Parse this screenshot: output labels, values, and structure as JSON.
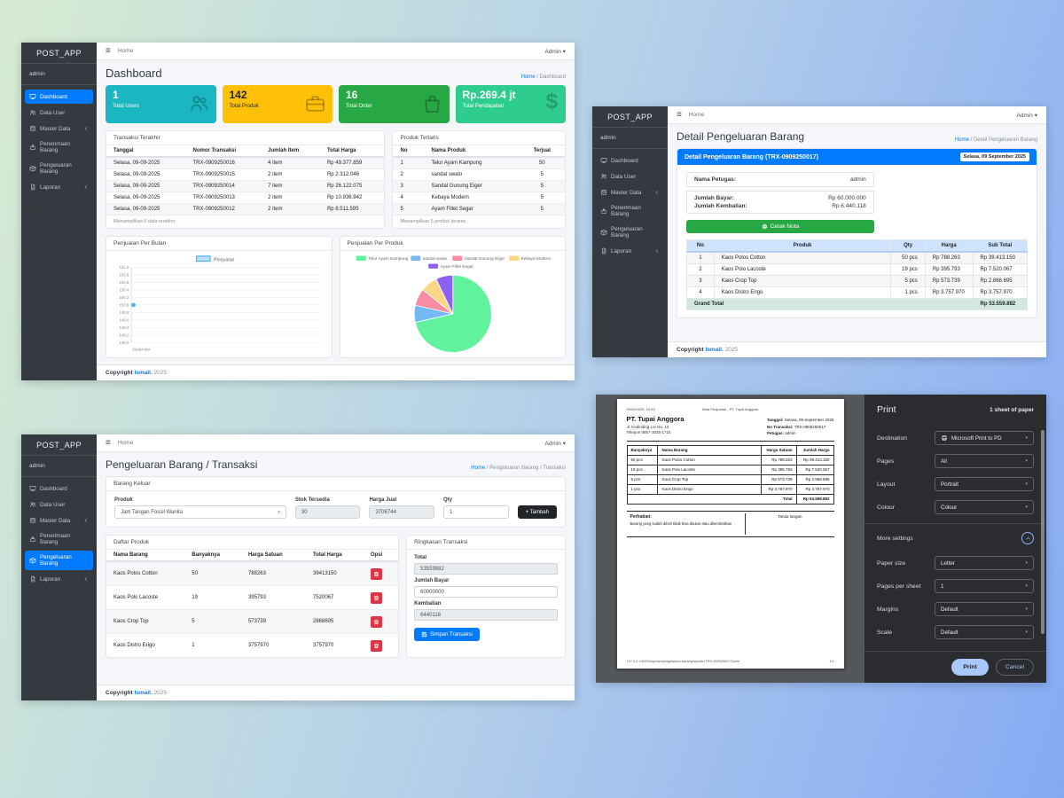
{
  "sidebar": {
    "brand": "POST_APP",
    "user": "admin",
    "items": [
      {
        "label": "Dashboard",
        "icon": "desktop-icon"
      },
      {
        "label": "Data User",
        "icon": "users-icon"
      },
      {
        "label": "Master Data",
        "icon": "database-icon",
        "chevron": true
      },
      {
        "label": "Penerimaan Barang",
        "icon": "receive-icon"
      },
      {
        "label": "Pengeluaran Barang",
        "icon": "box-icon"
      },
      {
        "label": "Laporan",
        "icon": "report-icon",
        "chevron": true
      }
    ]
  },
  "topbar": {
    "menu_icon": "≡",
    "home": "Home",
    "user_menu": "Admin",
    "caret": "▾"
  },
  "copyright": {
    "label": "Copyright",
    "brand": "Ismail.",
    "year": "2025"
  },
  "win_dashboard": {
    "title": "Dashboard",
    "breadcrumb_home": "Home",
    "breadcrumb_current": "Dashboard",
    "cards": [
      {
        "value": "1",
        "label": "Total Users",
        "color": "#1ab6c2",
        "icon": "users-group-icon"
      },
      {
        "value": "142",
        "label": "Total Produk",
        "color": "#ffc107",
        "icon": "briefcase-icon"
      },
      {
        "value": "16",
        "label": "Total Order",
        "color": "#28a745",
        "icon": "shopping-bag-icon"
      },
      {
        "value": "Rp.269.4 jt",
        "label": "Total Pendapatan",
        "color": "#2ecc8e",
        "icon": "dollar-icon"
      }
    ],
    "transaksi": {
      "title": "Transaksi Terakhir",
      "headers": [
        "Tanggal",
        "Nomor Transaksi",
        "Jumlah Item",
        "Total Harga"
      ],
      "rows": [
        [
          "Selasa, 09-09-2025",
          "TRX-0909250016",
          "4 item",
          "Rp 49.377.859"
        ],
        [
          "Selasa, 09-09-2025",
          "TRX-0909250015",
          "2 item",
          "Rp 2.312.046"
        ],
        [
          "Selasa, 09-09-2025",
          "TRX-0909250014",
          "7 item",
          "Rp 26.122.075"
        ],
        [
          "Selasa, 09-09-2025",
          "TRX-0909250013",
          "2 item",
          "Rp 10.936.942"
        ],
        [
          "Selasa, 09-09-2025",
          "TRX-0909250012",
          "2 item",
          "Rp 8.511.595"
        ]
      ],
      "footer": "Menampilkan 5 data terakhir"
    },
    "produk": {
      "title": "Produk Terlaris",
      "headers": [
        "No",
        "Nama Produk",
        "Terjual"
      ],
      "rows": [
        [
          "1",
          "Telur Ayam Kampung",
          "50"
        ],
        [
          "2",
          "sandal swalo",
          "5"
        ],
        [
          "3",
          "Sandal Gunung Eiger",
          "5"
        ],
        [
          "4",
          "Kebaya Modern",
          "5"
        ],
        [
          "5",
          "Ayam Fillet Segar",
          "5"
        ]
      ],
      "footer": "Menampilkan 5 produk teratas"
    },
    "chart_left_title": "Penjualan Per Bulan",
    "chart_right_title": "Penjualan Per Produk"
  },
  "chart_data": [
    {
      "type": "line",
      "title": "Penjualan Per Bulan",
      "x": [
        "September"
      ],
      "series": [
        {
          "name": "Penjualan",
          "values": [
            150.0
          ]
        }
      ],
      "ylim": [
        149.0,
        151.0
      ],
      "ytick_step": 0.2,
      "line_color": "#36a2eb",
      "grid": true,
      "legend_position": "top"
    },
    {
      "type": "pie",
      "title": "Penjualan Per Produk",
      "labels": [
        "Telur Ayam Kampung",
        "sandal swalo",
        "Sandal Gunung Eiger",
        "Kebaya Modern",
        "Ayam Fillet Segar"
      ],
      "values": [
        50,
        5,
        5,
        5,
        5
      ],
      "colors": [
        "#61f29d",
        "#74b8f4",
        "#f78ca2",
        "#fad686",
        "#8c5ff5"
      ],
      "legend_position": "top"
    }
  ],
  "win_detail": {
    "title": "Detail Pengeluaran Barang",
    "breadcrumb_home": "Home",
    "breadcrumb_current": "Detail Pengeluaran Barang",
    "panel_title": "Detail Pengeluaran Barang (TRX-0909250017)",
    "date_badge": "Selasa, 09 September 2025",
    "petugas_label": "Nama Petugas:",
    "petugas_value": "admin",
    "bayar_label": "Jumlah Bayar:",
    "bayar_value": "Rp 60.000.000",
    "kembalian_label": "Jumlah Kembalian:",
    "kembalian_value": "Rp 6.440.118",
    "cetak_label": "Cetak Nota",
    "headers": [
      "No",
      "Produk",
      "Qty",
      "Harga",
      "Sub Total"
    ],
    "rows": [
      [
        "1",
        "Kaos Polos Cotton",
        "50 pcs",
        "Rp 788.263",
        "Rp 39.413.150"
      ],
      [
        "2",
        "Kaos Polo Lacoste",
        "19 pcs",
        "Rp 395.793",
        "Rp 7.520.067"
      ],
      [
        "3",
        "Kaos Crop Top",
        "5 pcs",
        "Rp 573.739",
        "Rp 2.868.695"
      ],
      [
        "4",
        "Kaos Distro Erigo",
        "1 pcs",
        "Rp 3.757.970",
        "Rp 3.757.970"
      ]
    ],
    "grand_label": "Grand Total",
    "grand_value": "Rp 53.559.882"
  },
  "win_transaksi": {
    "title": "Pengeluaran Barang / Transaksi",
    "breadcrumb_home": "Home",
    "breadcrumb_current": "Pengeluaran Barang / Transaksi",
    "card_title": "Barang Keluar",
    "produk_label": "Produk",
    "produk_value": "Jam Tangan Fossil Wanita",
    "stok_label": "Stok Tersedia",
    "stok_value": "30",
    "harga_label": "Harga Jual",
    "harga_value": "3706744",
    "qty_label": "Qty",
    "qty_value": "1",
    "tambah_label": "+ Tambah",
    "daftar_title": "Daftar Produk",
    "daftar_headers": [
      "Nama Barang",
      "Banyaknya",
      "Harga Satuan",
      "Total Harga",
      "Opsi"
    ],
    "daftar_rows": [
      [
        "Kaos Polos Cotton",
        "50",
        "788263",
        "39413150"
      ],
      [
        "Kaos Polo Lacoste",
        "19",
        "395793",
        "7520067"
      ],
      [
        "Kaos Crop Top",
        "5",
        "573739",
        "2868695"
      ],
      [
        "Kaos Distro Erigo",
        "1",
        "3757970",
        "3757970"
      ]
    ],
    "ringkasan_title": "Ringkasan Transaksi",
    "total_label": "Total",
    "total_value": "53559882",
    "bayar_label": "Jumlah Bayar",
    "bayar_value": "60000000",
    "kembalian_label": "Kembalian",
    "kembalian_value": "6440118",
    "simpan_label": "Simpan Transaksi"
  },
  "win_print": {
    "invoice": {
      "meta_left": "09/09/2025, 10.53",
      "meta_center": "Nota Penjualan - PT. Tupai Anggora",
      "company": "PT. Tupai Anggora",
      "address": "Jl. Kedinding Lor No. 15",
      "phone": "Telepon 0857-3025-1715",
      "tanggal_label": "Tanggal:",
      "tanggal_value": "Selasa, 09 September 2025",
      "no_label": "No Transaksi:",
      "no_value": "TRX-0909250017",
      "petugas_label": "Petugas:",
      "petugas_value": "admin",
      "headers": [
        "Banyaknya",
        "Nama Barang",
        "Harga Satuan",
        "Jumlah Harga"
      ],
      "rows": [
        [
          "50 pcs",
          "Kaos Polos Cotton",
          "Rp 788.263",
          "Rp 39.413.150"
        ],
        [
          "19 pcs",
          "Kaos Polo Lacoste",
          "Rp 395.793",
          "Rp 7.520.067"
        ],
        [
          "5 pcs",
          "Kaos Crop Top",
          "Rp 573.739",
          "Rp 2.868.695"
        ],
        [
          "1 pcs",
          "Kaos Distro Erigo",
          "Rp 3.757.970",
          "Rp 3.757.970"
        ]
      ],
      "total_label": "Total",
      "total_value": "Rp 53.559.882",
      "perhatian_title": "Perhatian:",
      "perhatian_note": "Barang yang sudah dibeli tidak bisa ditukar atau dikembalikan",
      "signature_label": "Tanda tangan",
      "footer_url": "127.0.0.1:8000/laporan/pengeluaran-barang/laporan/TRX-0909250017/print",
      "footer_page": "1/1"
    },
    "dialog": {
      "title": "Print",
      "sheets": "1 sheet of paper",
      "destination_label": "Destination",
      "destination_value": "Microsoft Print to PD",
      "pages_label": "Pages",
      "pages_value": "All",
      "layout_label": "Layout",
      "layout_value": "Portrait",
      "colour_label": "Colour",
      "colour_value": "Colour",
      "more_settings": "More settings",
      "paper_label": "Paper size",
      "paper_value": "Letter",
      "pps_label": "Pages per sheet",
      "pps_value": "1",
      "margins_label": "Margins",
      "margins_value": "Default",
      "scale_label": "Scale",
      "scale_value": "Default",
      "print_btn": "Print",
      "cancel_btn": "Cancel",
      "caret": "▾"
    }
  }
}
